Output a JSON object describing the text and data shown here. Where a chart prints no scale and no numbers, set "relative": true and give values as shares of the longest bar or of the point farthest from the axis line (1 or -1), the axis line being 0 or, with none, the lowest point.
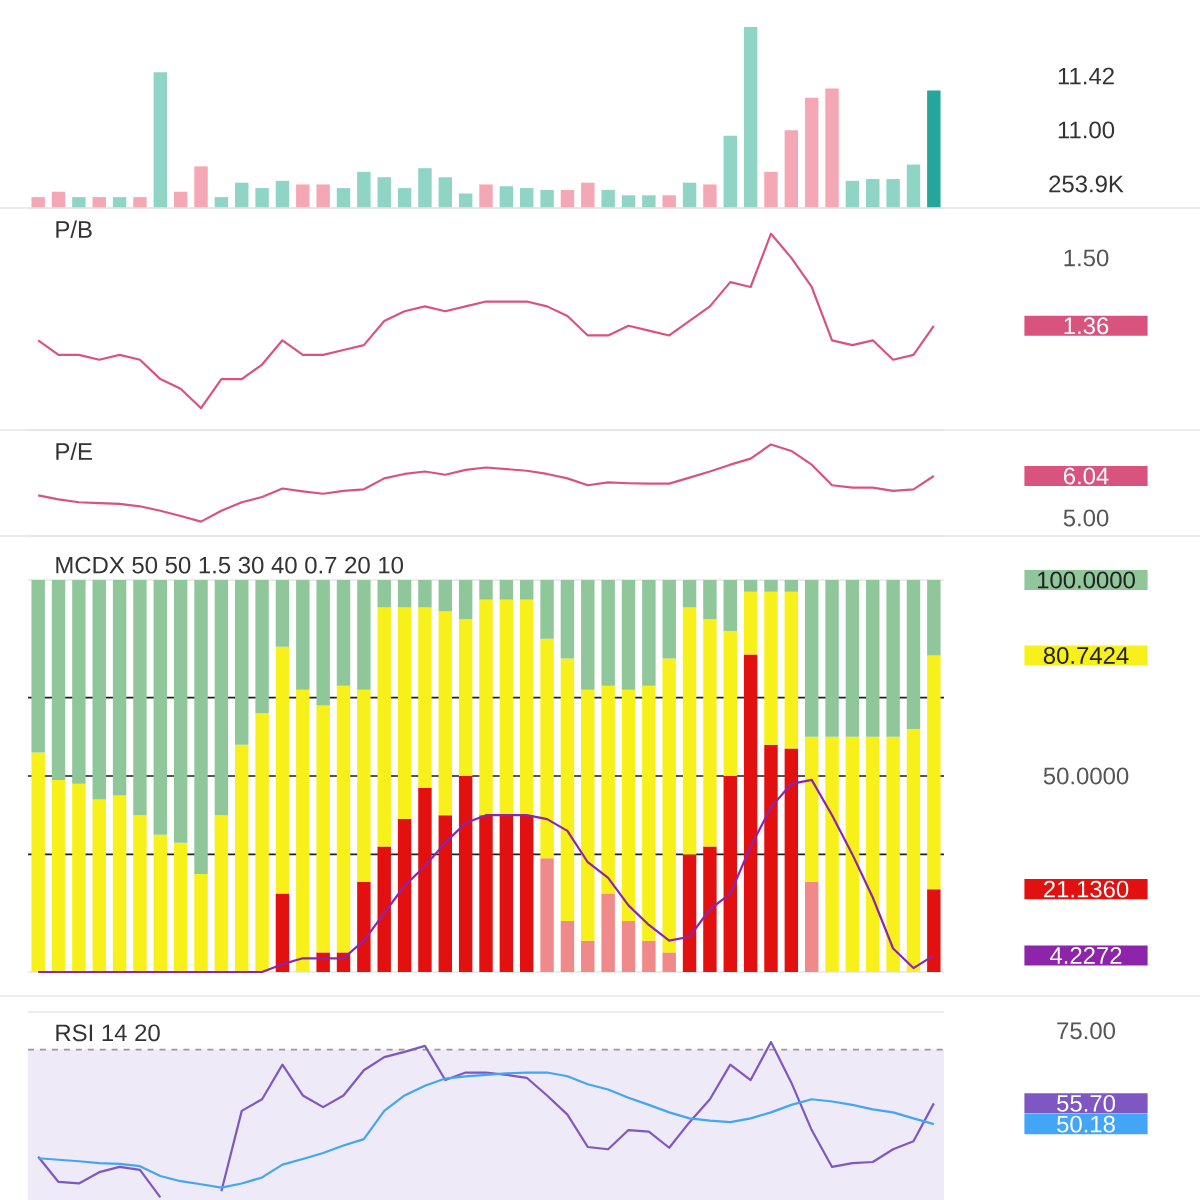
{
  "chart_data": [
    {
      "type": "bar",
      "relative": true,
      "categories": [
        null,
        null,
        null,
        null,
        null,
        null,
        null,
        null,
        null,
        null,
        null,
        null,
        null,
        null,
        null,
        null,
        null,
        null,
        null,
        null,
        null,
        null,
        null,
        null,
        null,
        null,
        null,
        null,
        null,
        null,
        null,
        null,
        null,
        null,
        null,
        null,
        null,
        null,
        null,
        null,
        null,
        null,
        null,
        null,
        null
      ],
      "series": [
        {
          "values": [
            0.06,
            0.09,
            0.06,
            0.06,
            0.06,
            0.06,
            0.75,
            0.09,
            0.23,
            0.06,
            0.14,
            0.11,
            0.15,
            0.13,
            0.13,
            0.11,
            0.2,
            0.17,
            0.11,
            0.22,
            0.17,
            0.08,
            0.13,
            0.12,
            0.11,
            0.1,
            0.1,
            0.14,
            0.1,
            0.07,
            0.07,
            0.07,
            0.14,
            0.13,
            0.4,
            1.0,
            0.2,
            0.43,
            0.61,
            0.66,
            0.15,
            0.16,
            0.16,
            0.24,
            0.65
          ],
          "colors": [
            "#f4a7b5",
            "#f4a7b5",
            "#8fd4c5",
            "#f4a7b5",
            "#8fd4c5",
            "#f4a7b5",
            "#8fd4c5",
            "#f4a7b5",
            "#f4a7b5",
            "#8fd4c5",
            "#8fd4c5",
            "#8fd4c5",
            "#8fd4c5",
            "#f4a7b5",
            "#f4a7b5",
            "#8fd4c5",
            "#8fd4c5",
            "#8fd4c5",
            "#8fd4c5",
            "#8fd4c5",
            "#8fd4c5",
            "#8fd4c5",
            "#f4a7b5",
            "#8fd4c5",
            "#8fd4c5",
            "#8fd4c5",
            "#f4a7b5",
            "#f4a7b5",
            "#8fd4c5",
            "#8fd4c5",
            "#8fd4c5",
            "#f4a7b5",
            "#8fd4c5",
            "#f4a7b5",
            "#8fd4c5",
            "#8fd4c5",
            "#f4a7b5",
            "#f4a7b5",
            "#f4a7b5",
            "#f4a7b5",
            "#8fd4c5",
            "#8fd4c5",
            "#8fd4c5",
            "#8fd4c5",
            "#26a69a"
          ]
        }
      ],
      "annotations": [
        "11.42",
        "11.00",
        "253.9K"
      ]
    },
    {
      "type": "line",
      "title": "P/B",
      "categories": [
        null,
        null,
        null,
        null,
        null,
        null,
        null,
        null,
        null,
        null,
        null,
        null,
        null,
        null,
        null,
        null,
        null,
        null,
        null,
        null,
        null,
        null,
        null,
        null,
        null,
        null,
        null,
        null,
        null,
        null,
        null,
        null,
        null,
        null,
        null,
        null,
        null,
        null,
        null,
        null,
        null,
        null,
        null,
        null,
        null
      ],
      "series": [
        {
          "color": "#d9537f",
          "values": [
            1.33,
            1.3,
            1.3,
            1.29,
            1.3,
            1.29,
            1.25,
            1.23,
            1.19,
            1.25,
            1.25,
            1.28,
            1.33,
            1.3,
            1.3,
            1.31,
            1.32,
            1.37,
            1.39,
            1.4,
            1.39,
            1.4,
            1.41,
            1.41,
            1.41,
            1.4,
            1.38,
            1.34,
            1.34,
            1.36,
            1.35,
            1.34,
            1.37,
            1.4,
            1.45,
            1.44,
            1.55,
            1.5,
            1.44,
            1.33,
            1.32,
            1.33,
            1.29,
            1.3,
            1.36
          ]
        }
      ],
      "ylim": [
        1.145,
        1.603
      ],
      "yticks": [
        {
          "value": 1.5,
          "label": "1.50"
        },
        {
          "value": 1.36,
          "label": "1.36"
        }
      ]
    },
    {
      "type": "line",
      "title": "P/E",
      "categories": [
        null,
        null,
        null,
        null,
        null,
        null,
        null,
        null,
        null,
        null,
        null,
        null,
        null,
        null,
        null,
        null,
        null,
        null,
        null,
        null,
        null,
        null,
        null,
        null,
        null,
        null,
        null,
        null,
        null,
        null,
        null,
        null,
        null,
        null,
        null,
        null,
        null,
        null,
        null,
        null,
        null,
        null,
        null,
        null,
        null
      ],
      "series": [
        {
          "color": "#d9537f",
          "values": [
            5.56,
            5.46,
            5.39,
            5.37,
            5.35,
            5.29,
            5.18,
            5.05,
            4.91,
            5.18,
            5.39,
            5.52,
            5.73,
            5.66,
            5.6,
            5.67,
            5.71,
            5.98,
            6.09,
            6.15,
            6.07,
            6.19,
            6.25,
            6.21,
            6.17,
            6.09,
            5.98,
            5.81,
            5.88,
            5.86,
            5.85,
            5.85,
            6.0,
            6.15,
            6.32,
            6.47,
            6.82,
            6.66,
            6.32,
            5.81,
            5.75,
            5.75,
            5.67,
            5.71,
            6.04
          ]
        }
      ],
      "ylim": [
        4.555,
        7.178
      ],
      "yticks": [
        {
          "value": 6.04,
          "label": "6.04"
        },
        {
          "value": 5,
          "label": "5.00"
        }
      ]
    },
    {
      "type": "bar",
      "stacked": true,
      "title": "MCDX 50 50 1.5 30 40 0.7 20 10",
      "categories": [
        null,
        null,
        null,
        null,
        null,
        null,
        null,
        null,
        null,
        null,
        null,
        null,
        null,
        null,
        null,
        null,
        null,
        null,
        null,
        null,
        null,
        null,
        null,
        null,
        null,
        null,
        null,
        null,
        null,
        null,
        null,
        null,
        null,
        null,
        null,
        null,
        null,
        null,
        null,
        null,
        null,
        null,
        null,
        null,
        null
      ],
      "series": [
        {
          "values": [
            0,
            0,
            0,
            0,
            0,
            0,
            0,
            0,
            0,
            0,
            0,
            0,
            20,
            0,
            5,
            5,
            23,
            32,
            39,
            47,
            40,
            50,
            40,
            40,
            40,
            29,
            13,
            8,
            20,
            13,
            8,
            5,
            30,
            32,
            50,
            81,
            58,
            57,
            23,
            0,
            0,
            0,
            0,
            0,
            21.136
          ],
          "colors": [
            "#e31010",
            "#e31010",
            "#e31010",
            "#e31010",
            "#e31010",
            "#e31010",
            "#e31010",
            "#e31010",
            "#e31010",
            "#e31010",
            "#e31010",
            "#e31010",
            "#e31010",
            "#e31010",
            "#e31010",
            "#e31010",
            "#e31010",
            "#e31010",
            "#e31010",
            "#e31010",
            "#e31010",
            "#e31010",
            "#e31010",
            "#e31010",
            "#e31010",
            "#f08a8a",
            "#f08a8a",
            "#f08a8a",
            "#f08a8a",
            "#f08a8a",
            "#f08a8a",
            "#f08a8a",
            "#e31010",
            "#e31010",
            "#e31010",
            "#e31010",
            "#e31010",
            "#e31010",
            "#f08a8a",
            "#e31010",
            "#e31010",
            "#e31010",
            "#e31010",
            "#e31010",
            "#e31010"
          ]
        },
        {
          "color": "#f7f01a",
          "values": [
            56,
            49,
            48,
            44,
            45,
            40,
            35,
            33,
            25,
            40,
            58,
            66,
            63,
            72,
            63,
            68,
            49,
            61,
            54,
            46,
            52,
            40,
            55,
            55,
            55,
            56,
            67,
            64,
            53,
            59,
            65,
            75,
            63,
            58,
            37,
            16,
            39,
            40,
            37,
            60,
            60,
            60,
            60,
            62,
            59.6064
          ]
        },
        {
          "color": "#8fc79a",
          "values": [
            44,
            51,
            52,
            56,
            55,
            60,
            65,
            67,
            75,
            60,
            42,
            34,
            17,
            28,
            32,
            27,
            28,
            7,
            7,
            7,
            8,
            10,
            5,
            5,
            5,
            15,
            20,
            28,
            27,
            28,
            27,
            20,
            7,
            10,
            13,
            3,
            3,
            3,
            40,
            40,
            40,
            40,
            40,
            38,
            19.2576
          ]
        },
        {
          "type": "line",
          "color": "#8e24aa",
          "values": [
            0,
            0,
            0,
            0,
            0,
            0,
            0,
            0,
            0,
            0,
            0,
            0,
            2,
            3.5,
            3.5,
            3.5,
            8,
            15,
            22,
            27,
            33,
            38,
            40,
            40,
            40,
            39,
            36,
            28,
            24,
            17,
            12,
            8,
            9,
            16,
            20,
            32,
            42,
            48,
            49,
            40,
            30,
            19,
            6,
            1,
            4.2272
          ]
        }
      ],
      "ylim": [
        0,
        100
      ],
      "yticks": [
        {
          "value": 100,
          "label": "100.0000"
        },
        {
          "value": 80.7424,
          "label": "80.7424"
        },
        {
          "value": 50,
          "label": "50.0000"
        },
        {
          "value": 21.136,
          "label": "21.1360"
        },
        {
          "value": 4.2272,
          "label": "4.2272"
        }
      ],
      "ref_lines": [
        {
          "axis": "y",
          "value": 70,
          "color": "#222222"
        },
        {
          "axis": "y",
          "value": 50,
          "color": "#555555"
        },
        {
          "axis": "y",
          "value": 30,
          "color": "#222222"
        }
      ]
    },
    {
      "type": "line",
      "title": "RSI 14 20",
      "categories": [
        null,
        null,
        null,
        null,
        null,
        null,
        null,
        null,
        null,
        null,
        null,
        null,
        null,
        null,
        null,
        null,
        null,
        null,
        null,
        null,
        null,
        null,
        null,
        null,
        null,
        null,
        null,
        null,
        null,
        null,
        null,
        null,
        null,
        null,
        null,
        null,
        null,
        null,
        null,
        null,
        null,
        null,
        null,
        null,
        null
      ],
      "series": [
        {
          "color": "#7e57c2",
          "values": [
            41.5,
            34.8,
            34.4,
            37.4,
            38.8,
            38.0,
            30.7,
            null,
            null,
            32.3,
            53.7,
            56.8,
            66.0,
            57.8,
            54.7,
            57.8,
            64.5,
            68.0,
            69.4,
            71.0,
            61.9,
            63.9,
            63.9,
            63.3,
            62.5,
            57.8,
            52.7,
            44.1,
            43.5,
            48.6,
            48.2,
            43.9,
            50.7,
            56.8,
            66.0,
            61.9,
            72.0,
            61.2,
            48.6,
            38.8,
            39.8,
            40.1,
            43.5,
            45.6,
            55.7
          ]
        },
        {
          "color": "#42a5f5",
          "values": [
            41.1,
            40.7,
            40.3,
            39.8,
            39.6,
            39.0,
            36.4,
            35.0,
            34.2,
            33.3,
            34.4,
            36.0,
            39.4,
            40.9,
            42.5,
            44.5,
            46.2,
            53.7,
            57.8,
            60.4,
            62.3,
            62.9,
            63.3,
            63.7,
            63.9,
            63.9,
            62.9,
            60.8,
            59.4,
            57.2,
            55.3,
            53.3,
            51.7,
            51.1,
            50.7,
            51.7,
            53.3,
            55.3,
            56.8,
            56.2,
            55.3,
            54.1,
            53.3,
            51.7,
            50.18
          ]
        }
      ],
      "ylim": [
        30,
        80
      ],
      "yticks": [
        {
          "value": 75,
          "label": "75.00"
        },
        {
          "value": 55.7,
          "label": "55.70"
        },
        {
          "value": 50.18,
          "label": "50.18"
        }
      ],
      "ref_lines": [
        {
          "axis": "y",
          "value": 70,
          "color": "#999999",
          "line_style": "dashed"
        }
      ],
      "bands": [
        {
          "axis": "y",
          "from": 30,
          "to": 70,
          "color": "#efeaf7"
        }
      ]
    }
  ]
}
